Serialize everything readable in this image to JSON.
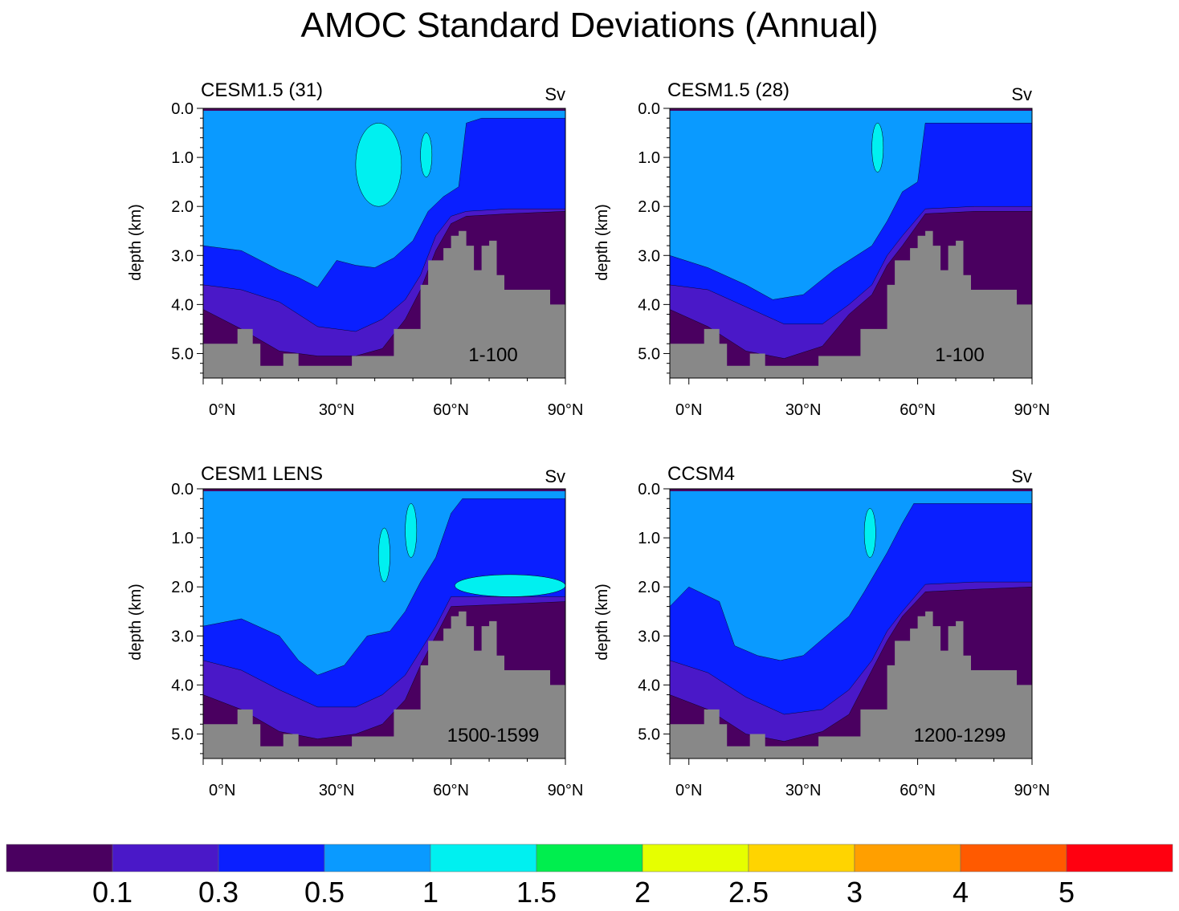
{
  "figure": {
    "title": "AMOC Standard Deviations (Annual)"
  },
  "colors": {
    "land": "#888888",
    "levels": [
      "#4a0060",
      "#4a18c8",
      "#0a1fff",
      "#0a9aff",
      "#00f0f0",
      "#00ee4e",
      "#e6ff00",
      "#ffd400",
      "#ff9f00",
      "#ff5a00",
      "#ff0010"
    ]
  },
  "chart_data": [
    {
      "type": "contour",
      "title": "CESM1.5 (31)",
      "units": "Sv",
      "period": "1-100",
      "ylabel": "depth (km)",
      "xlim": [
        -5,
        90
      ],
      "ylim": [
        5.5,
        0
      ],
      "xticks": [
        "0°N",
        "30°N",
        "60°N",
        "90°N"
      ],
      "yticks": [
        "0.0",
        "1.0",
        "2.0",
        "3.0",
        "4.0",
        "5.0"
      ],
      "bands_depth_km": {
        "level_0.5_0.3": [
          [
            -5,
            3.6
          ],
          [
            5,
            3.7
          ],
          [
            15,
            3.95
          ],
          [
            25,
            4.45
          ],
          [
            35,
            4.55
          ],
          [
            42,
            4.3
          ],
          [
            48,
            3.9
          ],
          [
            52,
            3.4
          ],
          [
            56,
            2.6
          ],
          [
            60,
            2.2
          ],
          [
            64,
            2.1
          ],
          [
            75,
            2.05
          ],
          [
            90,
            2.05
          ]
        ],
        "level_0.3_0.1": [
          [
            -5,
            4.1
          ],
          [
            5,
            4.5
          ],
          [
            15,
            4.95
          ],
          [
            25,
            5.05
          ],
          [
            35,
            5.05
          ],
          [
            42,
            4.9
          ],
          [
            48,
            4.3
          ],
          [
            52,
            3.7
          ],
          [
            56,
            2.9
          ],
          [
            60,
            2.35
          ],
          [
            64,
            2.2
          ],
          [
            75,
            2.15
          ],
          [
            90,
            2.1
          ]
        ],
        "level_1_0.5": [
          [
            -5,
            2.8
          ],
          [
            5,
            2.9
          ],
          [
            15,
            3.3
          ],
          [
            20,
            3.45
          ],
          [
            25,
            3.65
          ],
          [
            30,
            3.1
          ],
          [
            35,
            3.2
          ],
          [
            40,
            3.25
          ],
          [
            45,
            3.05
          ],
          [
            50,
            2.7
          ],
          [
            54,
            2.1
          ],
          [
            58,
            1.8
          ],
          [
            62,
            1.6
          ],
          [
            64,
            0.3
          ],
          [
            68,
            0.2
          ],
          [
            90,
            0.2
          ]
        ]
      },
      "cyan_patches": [
        {
          "lat": [
            35,
            47
          ],
          "depth_km": [
            0.3,
            2.0
          ]
        },
        {
          "lat": [
            52,
            55
          ],
          "depth_km": [
            0.5,
            1.4
          ]
        }
      ]
    },
    {
      "type": "contour",
      "title": "CESM1.5 (28)",
      "units": "Sv",
      "period": "1-100",
      "ylabel": "depth (km)",
      "xlim": [
        -5,
        90
      ],
      "ylim": [
        5.5,
        0
      ],
      "xticks": [
        "0°N",
        "30°N",
        "60°N",
        "90°N"
      ],
      "yticks": [
        "0.0",
        "1.0",
        "2.0",
        "3.0",
        "4.0",
        "5.0"
      ],
      "bands_depth_km": {
        "level_0.5_0.3": [
          [
            -5,
            3.6
          ],
          [
            5,
            3.7
          ],
          [
            15,
            4.05
          ],
          [
            25,
            4.4
          ],
          [
            35,
            4.4
          ],
          [
            42,
            4.0
          ],
          [
            48,
            3.6
          ],
          [
            52,
            3.0
          ],
          [
            56,
            2.6
          ],
          [
            62,
            2.05
          ],
          [
            75,
            2.0
          ],
          [
            90,
            2.0
          ]
        ],
        "level_0.3_0.1": [
          [
            -5,
            4.1
          ],
          [
            5,
            4.45
          ],
          [
            15,
            4.95
          ],
          [
            25,
            5.1
          ],
          [
            35,
            4.85
          ],
          [
            42,
            4.2
          ],
          [
            48,
            3.8
          ],
          [
            52,
            3.2
          ],
          [
            56,
            2.8
          ],
          [
            62,
            2.15
          ],
          [
            75,
            2.1
          ],
          [
            90,
            2.1
          ]
        ],
        "level_1_0.5": [
          [
            -5,
            3.0
          ],
          [
            5,
            3.25
          ],
          [
            15,
            3.6
          ],
          [
            22,
            3.9
          ],
          [
            30,
            3.8
          ],
          [
            38,
            3.3
          ],
          [
            44,
            3.0
          ],
          [
            48,
            2.8
          ],
          [
            52,
            2.3
          ],
          [
            56,
            1.7
          ],
          [
            60,
            1.5
          ],
          [
            62,
            0.3
          ],
          [
            90,
            0.3
          ]
        ]
      },
      "cyan_patches": [
        {
          "lat": [
            48,
            51
          ],
          "depth_km": [
            0.3,
            1.3
          ]
        }
      ]
    },
    {
      "type": "contour",
      "title": "CESM1 LENS",
      "units": "Sv",
      "period": "1500-1599",
      "ylabel": "depth (km)",
      "xlim": [
        -5,
        90
      ],
      "ylim": [
        5.5,
        0
      ],
      "xticks": [
        "0°N",
        "30°N",
        "60°N",
        "90°N"
      ],
      "yticks": [
        "0.0",
        "1.0",
        "2.0",
        "3.0",
        "4.0",
        "5.0"
      ],
      "bands_depth_km": {
        "level_0.5_0.3": [
          [
            -5,
            3.5
          ],
          [
            5,
            3.7
          ],
          [
            15,
            4.1
          ],
          [
            25,
            4.45
          ],
          [
            35,
            4.45
          ],
          [
            42,
            4.2
          ],
          [
            48,
            3.8
          ],
          [
            52,
            3.3
          ],
          [
            56,
            2.8
          ],
          [
            60,
            2.2
          ],
          [
            75,
            2.2
          ],
          [
            90,
            2.2
          ]
        ],
        "level_0.3_0.1": [
          [
            -5,
            4.2
          ],
          [
            5,
            4.5
          ],
          [
            15,
            4.95
          ],
          [
            25,
            5.1
          ],
          [
            35,
            5.0
          ],
          [
            42,
            4.8
          ],
          [
            48,
            4.3
          ],
          [
            52,
            3.6
          ],
          [
            56,
            3.0
          ],
          [
            60,
            2.4
          ],
          [
            75,
            2.35
          ],
          [
            90,
            2.3
          ]
        ],
        "level_1_0.5": [
          [
            -5,
            2.8
          ],
          [
            5,
            2.65
          ],
          [
            15,
            3.0
          ],
          [
            20,
            3.5
          ],
          [
            25,
            3.8
          ],
          [
            32,
            3.6
          ],
          [
            38,
            3.0
          ],
          [
            44,
            2.9
          ],
          [
            48,
            2.5
          ],
          [
            52,
            1.9
          ],
          [
            56,
            1.4
          ],
          [
            60,
            0.5
          ],
          [
            63,
            0.2
          ],
          [
            90,
            0.2
          ]
        ]
      },
      "cyan_patches": [
        {
          "lat": [
            41,
            44
          ],
          "depth_km": [
            0.8,
            1.9
          ]
        },
        {
          "lat": [
            48,
            51
          ],
          "depth_km": [
            0.3,
            1.4
          ]
        },
        {
          "lat": [
            61,
            90
          ],
          "depth_km": [
            1.75,
            2.2
          ]
        }
      ]
    },
    {
      "type": "contour",
      "title": "CCSM4",
      "units": "Sv",
      "period": "1200-1299",
      "ylabel": "depth (km)",
      "xlim": [
        -5,
        90
      ],
      "ylim": [
        5.5,
        0
      ],
      "xticks": [
        "0°N",
        "30°N",
        "60°N",
        "90°N"
      ],
      "yticks": [
        "0.0",
        "1.0",
        "2.0",
        "3.0",
        "4.0",
        "5.0"
      ],
      "bands_depth_km": {
        "level_0.5_0.3": [
          [
            -5,
            3.5
          ],
          [
            5,
            3.75
          ],
          [
            15,
            4.25
          ],
          [
            25,
            4.6
          ],
          [
            35,
            4.5
          ],
          [
            42,
            4.1
          ],
          [
            48,
            3.5
          ],
          [
            52,
            2.9
          ],
          [
            56,
            2.5
          ],
          [
            62,
            1.95
          ],
          [
            75,
            1.9
          ],
          [
            90,
            1.9
          ]
        ],
        "level_0.3_0.1": [
          [
            -5,
            4.2
          ],
          [
            5,
            4.5
          ],
          [
            15,
            5.0
          ],
          [
            25,
            5.15
          ],
          [
            35,
            4.95
          ],
          [
            42,
            4.6
          ],
          [
            48,
            3.7
          ],
          [
            52,
            3.1
          ],
          [
            56,
            2.6
          ],
          [
            62,
            2.1
          ],
          [
            75,
            2.05
          ],
          [
            90,
            2.0
          ]
        ],
        "level_1_0.5": [
          [
            -5,
            2.4
          ],
          [
            0,
            2.0
          ],
          [
            8,
            2.3
          ],
          [
            12,
            3.2
          ],
          [
            18,
            3.4
          ],
          [
            24,
            3.5
          ],
          [
            30,
            3.4
          ],
          [
            36,
            3.0
          ],
          [
            42,
            2.6
          ],
          [
            46,
            2.1
          ],
          [
            52,
            1.3
          ],
          [
            56,
            0.7
          ],
          [
            59,
            0.3
          ],
          [
            90,
            0.3
          ]
        ]
      },
      "cyan_patches": [
        {
          "lat": [
            46,
            49
          ],
          "depth_km": [
            0.4,
            1.4
          ]
        }
      ]
    }
  ],
  "colorbar": {
    "labels": [
      "0.1",
      "0.3",
      "0.5",
      "1",
      "1.5",
      "2",
      "2.5",
      "3",
      "4",
      "5"
    ]
  }
}
